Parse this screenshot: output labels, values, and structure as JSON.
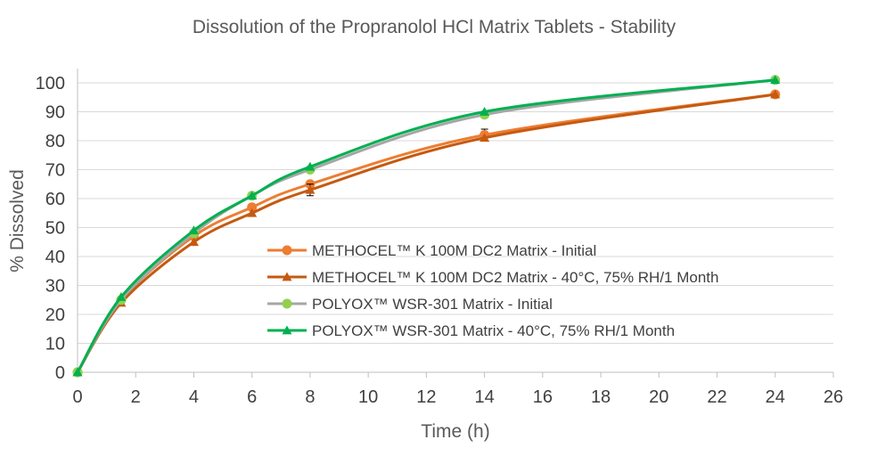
{
  "chart_data": {
    "type": "line",
    "title": "Dissolution of the Propranolol HCl Matrix Tablets - Stability",
    "xlabel": "Time (h)",
    "ylabel": "% Dissolved",
    "xlim": [
      0,
      26
    ],
    "ylim": [
      0,
      100
    ],
    "xticks": [
      0,
      2,
      4,
      6,
      8,
      10,
      12,
      14,
      16,
      18,
      20,
      22,
      24,
      26
    ],
    "yticks": [
      0,
      10,
      20,
      30,
      40,
      50,
      60,
      70,
      80,
      90,
      100
    ],
    "grid": true,
    "legend_position": "center-right",
    "series": [
      {
        "name": "METHOCEL™ K 100M DC2 Matrix - Initial",
        "color": "#ed7d31",
        "marker": "circle",
        "x": [
          0,
          1.5,
          4,
          6,
          8,
          14,
          24
        ],
        "values": [
          0,
          25,
          47,
          57,
          65,
          82,
          96
        ],
        "errors": [
          0,
          0,
          0,
          0,
          0,
          2,
          0
        ]
      },
      {
        "name": "METHOCEL™ K 100M DC2 Matrix - 40°C, 75% RH/1 Month",
        "color": "#c55a11",
        "marker": "triangle",
        "x": [
          0,
          1.5,
          4,
          6,
          8,
          14,
          24
        ],
        "values": [
          0,
          24,
          45,
          55,
          63,
          81,
          96
        ],
        "errors": [
          0,
          0,
          0,
          0,
          2,
          0,
          0
        ]
      },
      {
        "name": "POLYOX™ WSR-301 Matrix  - Initial",
        "color": "#a6a6a6",
        "marker": "circle",
        "marker_color": "#92d050",
        "x": [
          0,
          1.5,
          4,
          6,
          8,
          14,
          24
        ],
        "values": [
          0,
          25,
          48,
          61,
          70,
          89,
          101
        ],
        "errors": [
          0,
          0,
          0,
          0,
          0,
          0,
          0
        ]
      },
      {
        "name": "POLYOX™ WSR-301 Matrix  - 40°C, 75% RH/1 Month",
        "color": "#00b050",
        "marker": "triangle",
        "x": [
          0,
          1.5,
          4,
          6,
          8,
          14,
          24
        ],
        "values": [
          0,
          26,
          49,
          61,
          71,
          90,
          101
        ],
        "errors": [
          0,
          0,
          0,
          0,
          0,
          0,
          0
        ]
      }
    ]
  }
}
